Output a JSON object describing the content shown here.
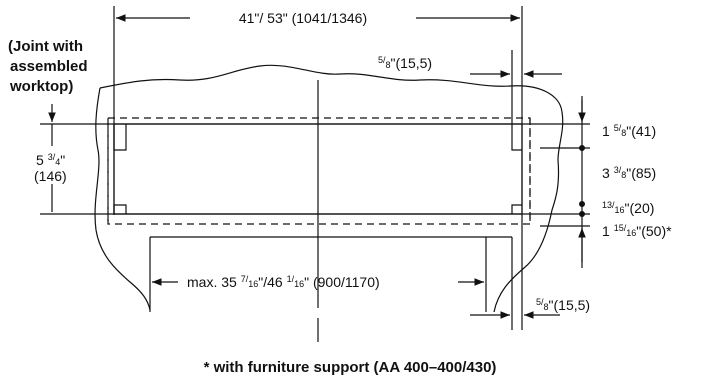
{
  "joint_note": [
    "(Joint with",
    "assembled",
    "worktop)"
  ],
  "dims": {
    "top_width": "41\"/ 53\" (1041/1346)",
    "right_gap_top": {
      "frac_num": "5",
      "frac_den": "8",
      "rest": "\"(15,5)"
    },
    "height_left": {
      "whole": "5",
      "frac_num": "3",
      "frac_den": "4",
      "rest": "\"",
      "mm": "(146)"
    },
    "r1": {
      "whole": "1",
      "frac_num": "5",
      "frac_den": "8",
      "rest": "\"(41)"
    },
    "r2": {
      "whole": "3",
      "frac_num": "3",
      "frac_den": "8",
      "rest": "\"(85)"
    },
    "r3": {
      "whole": "",
      "frac_num": "13",
      "frac_den": "16",
      "rest": "\"(20)"
    },
    "r4": {
      "whole": "1",
      "frac_num": "15",
      "frac_den": "16",
      "rest": "\"(50)*"
    },
    "bottom_width": {
      "prefix": "max. 35",
      "f1_num": "7",
      "f1_den": "16",
      "mid": "\"/46",
      "f2_num": "1",
      "f2_den": "16",
      "rest": "\" (900/1170)"
    },
    "right_gap_bottom": {
      "frac_num": "5",
      "frac_den": "8",
      "rest": "\"(15,5)"
    }
  },
  "footnote": "* with furniture support (AA 400–400/430)"
}
